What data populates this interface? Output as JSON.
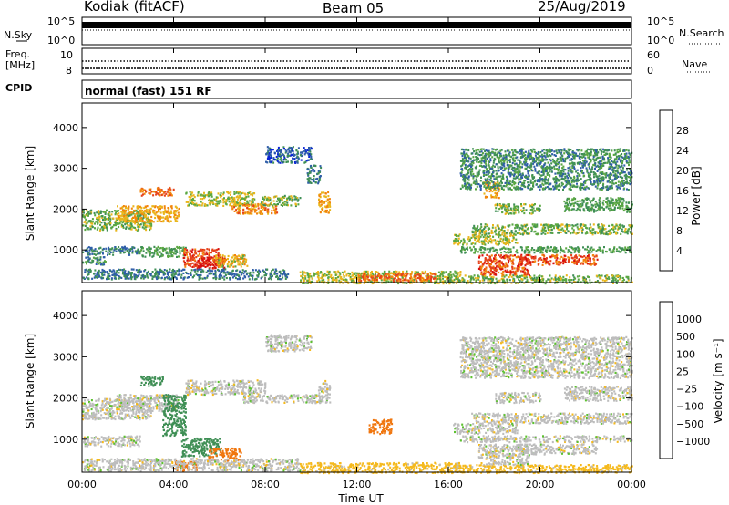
{
  "header": {
    "station": "Kodiak (fitACF)",
    "beam": "Beam 05",
    "date": "25/Aug/2019"
  },
  "noise_panel": {
    "left_label": "N.Sky",
    "left_ticks": [
      "10^5",
      "10^0"
    ],
    "right_label": "N.Search",
    "right_ticks": [
      "10^5",
      "10^0"
    ]
  },
  "freq_panel": {
    "left_label_1": "Freq.",
    "left_label_2": "[MHz]",
    "left_ticks": [
      "10",
      "8"
    ],
    "right_label": "Nave",
    "right_ticks": [
      "60",
      "0"
    ]
  },
  "cpid": {
    "label": "CPID",
    "value": "normal (fast) 151 RF"
  },
  "colors": {
    "power": [
      "#0b25d6",
      "#2f5ea8",
      "#3f8f55",
      "#5aa742",
      "#e9b61c",
      "#f2850c",
      "#e5421b",
      "#d70e0e"
    ],
    "velocity": [
      "#1a2aa8",
      "#2f69b8",
      "#3f8f55",
      "#5cc12f",
      "#bdbdbd",
      "#f5b91c",
      "#f0760e",
      "#e03014",
      "#d00000"
    ]
  },
  "chart_data": [
    {
      "type": "heatmap",
      "name": "power",
      "ylabel": "Slant Range [km]",
      "ylim": [
        200,
        4600
      ],
      "yticks": [
        1000,
        2000,
        3000,
        4000
      ],
      "colorbar_label": "Power [dB]",
      "colorbar_ticks": [
        "4",
        "8",
        "12",
        "16",
        "20",
        "24",
        "28"
      ],
      "colorbar_range": [
        0,
        32
      ],
      "features": [
        {
          "t0": 0.0,
          "t1": 3.0,
          "r0": 1500,
          "r1": 2000,
          "value": 14
        },
        {
          "t0": 1.5,
          "t1": 4.2,
          "r0": 1700,
          "r1": 2100,
          "value": 20
        },
        {
          "t0": 2.5,
          "t1": 4.0,
          "r0": 2350,
          "r1": 2550,
          "value": 24
        },
        {
          "t0": 4.5,
          "t1": 7.5,
          "r0": 2100,
          "r1": 2450,
          "value": 16
        },
        {
          "t0": 6.5,
          "t1": 8.5,
          "r0": 1900,
          "r1": 2150,
          "value": 22
        },
        {
          "t0": 7.8,
          "t1": 9.5,
          "r0": 2100,
          "r1": 2350,
          "value": 14
        },
        {
          "t0": 0.0,
          "t1": 2.5,
          "r0": 900,
          "r1": 1100,
          "value": 8
        },
        {
          "t0": 2.5,
          "t1": 4.5,
          "r0": 850,
          "r1": 1100,
          "value": 12
        },
        {
          "t0": 0.0,
          "t1": 1.0,
          "r0": 650,
          "r1": 850,
          "value": 10
        },
        {
          "t0": 4.4,
          "t1": 6.0,
          "r0": 600,
          "r1": 1050,
          "value": 26
        },
        {
          "t0": 5.0,
          "t1": 6.2,
          "r0": 550,
          "r1": 850,
          "value": 30
        },
        {
          "t0": 5.8,
          "t1": 7.2,
          "r0": 600,
          "r1": 900,
          "value": 18
        },
        {
          "t0": 10.3,
          "t1": 10.8,
          "r0": 1900,
          "r1": 2450,
          "value": 20
        },
        {
          "t0": 8.0,
          "t1": 10.0,
          "r0": 3150,
          "r1": 3550,
          "value": 6
        },
        {
          "t0": 9.8,
          "t1": 10.4,
          "r0": 2650,
          "r1": 3100,
          "value": 8
        },
        {
          "t0": 0.0,
          "t1": 9.0,
          "r0": 300,
          "r1": 550,
          "value": 8
        },
        {
          "t0": 9.5,
          "t1": 16.5,
          "r0": 200,
          "r1": 500,
          "value": 16
        },
        {
          "t0": 12.0,
          "t1": 15.5,
          "r0": 250,
          "r1": 450,
          "value": 24
        },
        {
          "t0": 16.0,
          "t1": 24.0,
          "r0": 200,
          "r1": 400,
          "value": 14
        },
        {
          "t0": 17.3,
          "t1": 19.5,
          "r0": 400,
          "r1": 900,
          "value": 26
        },
        {
          "t0": 19.0,
          "t1": 22.5,
          "r0": 650,
          "r1": 900,
          "value": 26
        },
        {
          "t0": 16.5,
          "t1": 24.0,
          "r0": 950,
          "r1": 1100,
          "value": 12
        },
        {
          "t0": 16.2,
          "t1": 19.0,
          "r0": 1150,
          "r1": 1400,
          "value": 16
        },
        {
          "t0": 17.0,
          "t1": 24.0,
          "r0": 1400,
          "r1": 1650,
          "value": 14
        },
        {
          "t0": 18.0,
          "t1": 20.0,
          "r0": 1900,
          "r1": 2150,
          "value": 14
        },
        {
          "t0": 21.0,
          "t1": 24.0,
          "r0": 1950,
          "r1": 2300,
          "value": 12
        },
        {
          "t0": 17.5,
          "t1": 18.2,
          "r0": 2300,
          "r1": 2700,
          "value": 20
        },
        {
          "t0": 16.5,
          "t1": 24.0,
          "r0": 2500,
          "r1": 3500,
          "value": 10
        }
      ]
    },
    {
      "type": "heatmap",
      "name": "velocity",
      "ylabel": "Slant Range [km]",
      "ylim": [
        200,
        4600
      ],
      "yticks": [
        1000,
        2000,
        3000,
        4000
      ],
      "xticks": [
        "00:00",
        "04:00",
        "08:00",
        "12:00",
        "16:00",
        "20:00",
        "00:00"
      ],
      "xlabel": "Time UT",
      "colorbar_label": "Velocity [m s⁻¹]",
      "colorbar_ticks": [
        "1000",
        "500",
        "100",
        "25",
        "−25",
        "−100",
        "−500",
        "−1000"
      ],
      "features": [
        {
          "t0": 0.0,
          "t1": 3.0,
          "r0": 1500,
          "r1": 2000,
          "value": 0
        },
        {
          "t0": 1.5,
          "t1": 4.2,
          "r0": 1700,
          "r1": 2100,
          "value": 0
        },
        {
          "t0": 2.5,
          "t1": 3.5,
          "r0": 2300,
          "r1": 2550,
          "value": 200
        },
        {
          "t0": 3.5,
          "t1": 4.5,
          "r0": 1100,
          "r1": 2100,
          "value": 300
        },
        {
          "t0": 4.5,
          "t1": 8.0,
          "r0": 2100,
          "r1": 2450,
          "value": 0
        },
        {
          "t0": 7.0,
          "t1": 10.5,
          "r0": 1900,
          "r1": 2100,
          "value": 0
        },
        {
          "t0": 0.0,
          "t1": 2.5,
          "r0": 850,
          "r1": 1100,
          "value": 0
        },
        {
          "t0": 4.3,
          "t1": 6.0,
          "r0": 600,
          "r1": 1050,
          "value": 200
        },
        {
          "t0": 5.5,
          "t1": 7.0,
          "r0": 500,
          "r1": 800,
          "value": -200
        },
        {
          "t0": 4.0,
          "t1": 5.0,
          "r0": 250,
          "r1": 500,
          "value": -300
        },
        {
          "t0": 10.3,
          "t1": 10.8,
          "r0": 1900,
          "r1": 2450,
          "value": 0
        },
        {
          "t0": 8.0,
          "t1": 10.0,
          "r0": 3150,
          "r1": 3550,
          "value": 0
        },
        {
          "t0": 0.0,
          "t1": 9.5,
          "r0": 250,
          "r1": 550,
          "value": 0
        },
        {
          "t0": 9.5,
          "t1": 16.5,
          "r0": 200,
          "r1": 450,
          "value": -50
        },
        {
          "t0": 12.5,
          "t1": 13.5,
          "r0": 1150,
          "r1": 1500,
          "value": -300
        },
        {
          "t0": 16.0,
          "t1": 24.0,
          "r0": 200,
          "r1": 400,
          "value": -50
        },
        {
          "t0": 17.3,
          "t1": 19.5,
          "r0": 400,
          "r1": 900,
          "value": 0
        },
        {
          "t0": 19.0,
          "t1": 22.5,
          "r0": 650,
          "r1": 900,
          "value": 0
        },
        {
          "t0": 16.5,
          "t1": 24.0,
          "r0": 950,
          "r1": 1100,
          "value": 0
        },
        {
          "t0": 16.2,
          "t1": 19.0,
          "r0": 1150,
          "r1": 1400,
          "value": 0
        },
        {
          "t0": 17.0,
          "t1": 24.0,
          "r0": 1400,
          "r1": 1650,
          "value": 0
        },
        {
          "t0": 18.0,
          "t1": 20.0,
          "r0": 1900,
          "r1": 2150,
          "value": 0
        },
        {
          "t0": 21.0,
          "t1": 24.0,
          "r0": 1950,
          "r1": 2300,
          "value": 0
        },
        {
          "t0": 16.5,
          "t1": 24.0,
          "r0": 2500,
          "r1": 3500,
          "value": 0
        }
      ]
    }
  ]
}
